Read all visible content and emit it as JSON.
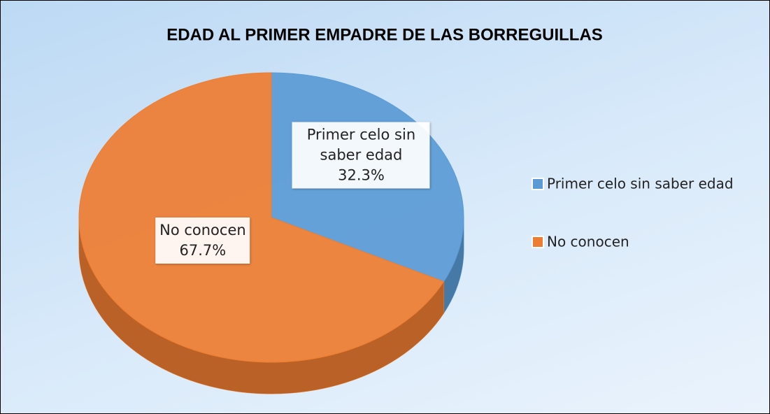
{
  "chart_data": {
    "type": "pie",
    "title": "EDAD AL PRIMER EMPADRE DE LAS BORREGUILLAS",
    "categories": [
      "Primer celo sin saber edad",
      "No conocen"
    ],
    "values": [
      32.3,
      67.7
    ],
    "value_labels": [
      "32.3%",
      "67.7%"
    ],
    "colors": [
      "#5b9bd5",
      "#ed7d31"
    ],
    "legend": "right"
  }
}
